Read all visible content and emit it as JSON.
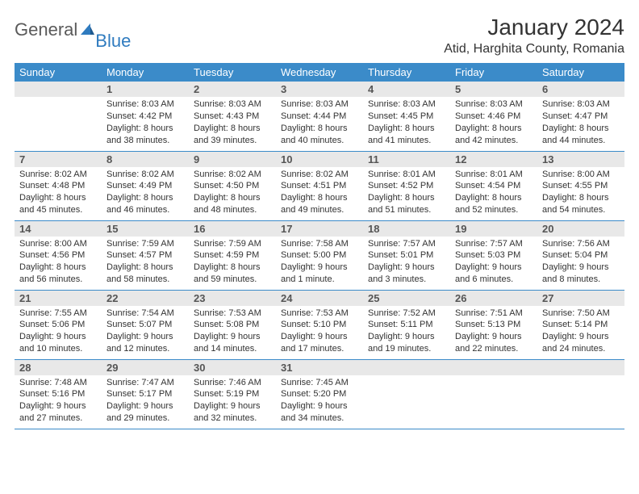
{
  "logo": {
    "general": "General",
    "blue": "Blue"
  },
  "title": "January 2024",
  "location": "Atid, Harghita County, Romania",
  "colors": {
    "header_bg": "#3b8bc9",
    "header_fg": "#ffffff",
    "daynum_bg": "#e8e8e8",
    "border": "#3b8bc9",
    "logo_blue": "#2f7bbf",
    "logo_gray": "#5a5a5a"
  },
  "weekdays": [
    "Sunday",
    "Monday",
    "Tuesday",
    "Wednesday",
    "Thursday",
    "Friday",
    "Saturday"
  ],
  "weeks": [
    [
      {
        "n": "",
        "sr": "",
        "ss": "",
        "dl": ""
      },
      {
        "n": "1",
        "sr": "Sunrise: 8:03 AM",
        "ss": "Sunset: 4:42 PM",
        "dl": "Daylight: 8 hours and 38 minutes."
      },
      {
        "n": "2",
        "sr": "Sunrise: 8:03 AM",
        "ss": "Sunset: 4:43 PM",
        "dl": "Daylight: 8 hours and 39 minutes."
      },
      {
        "n": "3",
        "sr": "Sunrise: 8:03 AM",
        "ss": "Sunset: 4:44 PM",
        "dl": "Daylight: 8 hours and 40 minutes."
      },
      {
        "n": "4",
        "sr": "Sunrise: 8:03 AM",
        "ss": "Sunset: 4:45 PM",
        "dl": "Daylight: 8 hours and 41 minutes."
      },
      {
        "n": "5",
        "sr": "Sunrise: 8:03 AM",
        "ss": "Sunset: 4:46 PM",
        "dl": "Daylight: 8 hours and 42 minutes."
      },
      {
        "n": "6",
        "sr": "Sunrise: 8:03 AM",
        "ss": "Sunset: 4:47 PM",
        "dl": "Daylight: 8 hours and 44 minutes."
      }
    ],
    [
      {
        "n": "7",
        "sr": "Sunrise: 8:02 AM",
        "ss": "Sunset: 4:48 PM",
        "dl": "Daylight: 8 hours and 45 minutes."
      },
      {
        "n": "8",
        "sr": "Sunrise: 8:02 AM",
        "ss": "Sunset: 4:49 PM",
        "dl": "Daylight: 8 hours and 46 minutes."
      },
      {
        "n": "9",
        "sr": "Sunrise: 8:02 AM",
        "ss": "Sunset: 4:50 PM",
        "dl": "Daylight: 8 hours and 48 minutes."
      },
      {
        "n": "10",
        "sr": "Sunrise: 8:02 AM",
        "ss": "Sunset: 4:51 PM",
        "dl": "Daylight: 8 hours and 49 minutes."
      },
      {
        "n": "11",
        "sr": "Sunrise: 8:01 AM",
        "ss": "Sunset: 4:52 PM",
        "dl": "Daylight: 8 hours and 51 minutes."
      },
      {
        "n": "12",
        "sr": "Sunrise: 8:01 AM",
        "ss": "Sunset: 4:54 PM",
        "dl": "Daylight: 8 hours and 52 minutes."
      },
      {
        "n": "13",
        "sr": "Sunrise: 8:00 AM",
        "ss": "Sunset: 4:55 PM",
        "dl": "Daylight: 8 hours and 54 minutes."
      }
    ],
    [
      {
        "n": "14",
        "sr": "Sunrise: 8:00 AM",
        "ss": "Sunset: 4:56 PM",
        "dl": "Daylight: 8 hours and 56 minutes."
      },
      {
        "n": "15",
        "sr": "Sunrise: 7:59 AM",
        "ss": "Sunset: 4:57 PM",
        "dl": "Daylight: 8 hours and 58 minutes."
      },
      {
        "n": "16",
        "sr": "Sunrise: 7:59 AM",
        "ss": "Sunset: 4:59 PM",
        "dl": "Daylight: 8 hours and 59 minutes."
      },
      {
        "n": "17",
        "sr": "Sunrise: 7:58 AM",
        "ss": "Sunset: 5:00 PM",
        "dl": "Daylight: 9 hours and 1 minute."
      },
      {
        "n": "18",
        "sr": "Sunrise: 7:57 AM",
        "ss": "Sunset: 5:01 PM",
        "dl": "Daylight: 9 hours and 3 minutes."
      },
      {
        "n": "19",
        "sr": "Sunrise: 7:57 AM",
        "ss": "Sunset: 5:03 PM",
        "dl": "Daylight: 9 hours and 6 minutes."
      },
      {
        "n": "20",
        "sr": "Sunrise: 7:56 AM",
        "ss": "Sunset: 5:04 PM",
        "dl": "Daylight: 9 hours and 8 minutes."
      }
    ],
    [
      {
        "n": "21",
        "sr": "Sunrise: 7:55 AM",
        "ss": "Sunset: 5:06 PM",
        "dl": "Daylight: 9 hours and 10 minutes."
      },
      {
        "n": "22",
        "sr": "Sunrise: 7:54 AM",
        "ss": "Sunset: 5:07 PM",
        "dl": "Daylight: 9 hours and 12 minutes."
      },
      {
        "n": "23",
        "sr": "Sunrise: 7:53 AM",
        "ss": "Sunset: 5:08 PM",
        "dl": "Daylight: 9 hours and 14 minutes."
      },
      {
        "n": "24",
        "sr": "Sunrise: 7:53 AM",
        "ss": "Sunset: 5:10 PM",
        "dl": "Daylight: 9 hours and 17 minutes."
      },
      {
        "n": "25",
        "sr": "Sunrise: 7:52 AM",
        "ss": "Sunset: 5:11 PM",
        "dl": "Daylight: 9 hours and 19 minutes."
      },
      {
        "n": "26",
        "sr": "Sunrise: 7:51 AM",
        "ss": "Sunset: 5:13 PM",
        "dl": "Daylight: 9 hours and 22 minutes."
      },
      {
        "n": "27",
        "sr": "Sunrise: 7:50 AM",
        "ss": "Sunset: 5:14 PM",
        "dl": "Daylight: 9 hours and 24 minutes."
      }
    ],
    [
      {
        "n": "28",
        "sr": "Sunrise: 7:48 AM",
        "ss": "Sunset: 5:16 PM",
        "dl": "Daylight: 9 hours and 27 minutes."
      },
      {
        "n": "29",
        "sr": "Sunrise: 7:47 AM",
        "ss": "Sunset: 5:17 PM",
        "dl": "Daylight: 9 hours and 29 minutes."
      },
      {
        "n": "30",
        "sr": "Sunrise: 7:46 AM",
        "ss": "Sunset: 5:19 PM",
        "dl": "Daylight: 9 hours and 32 minutes."
      },
      {
        "n": "31",
        "sr": "Sunrise: 7:45 AM",
        "ss": "Sunset: 5:20 PM",
        "dl": "Daylight: 9 hours and 34 minutes."
      },
      {
        "n": "",
        "sr": "",
        "ss": "",
        "dl": ""
      },
      {
        "n": "",
        "sr": "",
        "ss": "",
        "dl": ""
      },
      {
        "n": "",
        "sr": "",
        "ss": "",
        "dl": ""
      }
    ]
  ]
}
